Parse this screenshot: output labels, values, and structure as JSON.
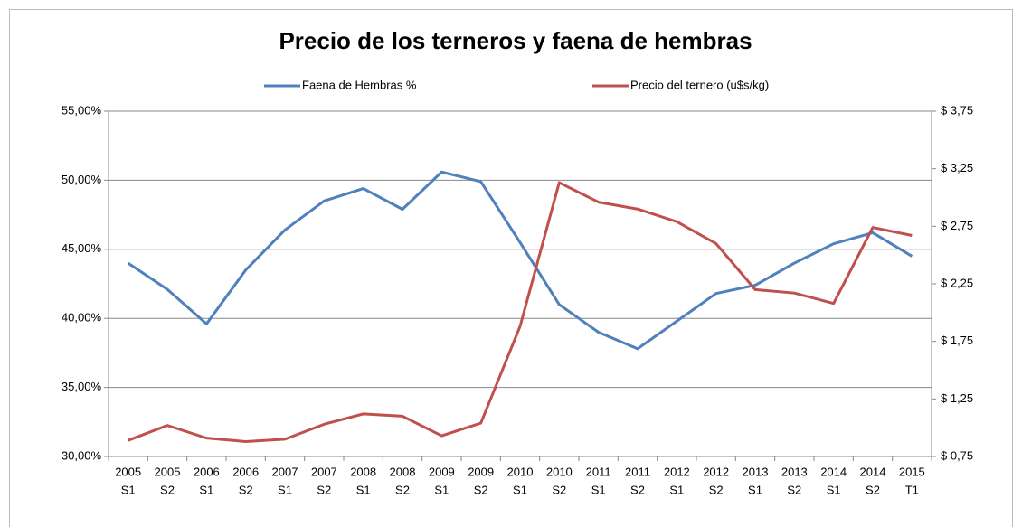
{
  "chart_data": {
    "type": "line",
    "title": "Precio de los terneros y faena de hembras",
    "categories": [
      [
        "2005",
        "S1"
      ],
      [
        "2005",
        "S2"
      ],
      [
        "2006",
        "S1"
      ],
      [
        "2006",
        "S2"
      ],
      [
        "2007",
        "S1"
      ],
      [
        "2007",
        "S2"
      ],
      [
        "2008",
        "S1"
      ],
      [
        "2008",
        "S2"
      ],
      [
        "2009",
        "S1"
      ],
      [
        "2009",
        "S2"
      ],
      [
        "2010",
        "S1"
      ],
      [
        "2010",
        "S2"
      ],
      [
        "2011",
        "S1"
      ],
      [
        "2011",
        "S2"
      ],
      [
        "2012",
        "S1"
      ],
      [
        "2012",
        "S2"
      ],
      [
        "2013",
        "S1"
      ],
      [
        "2013",
        "S2"
      ],
      [
        "2014",
        "S1"
      ],
      [
        "2014",
        "S2"
      ],
      [
        "2015",
        "T1"
      ]
    ],
    "series": [
      {
        "name": "Faena de Hembras %",
        "color": "#4f81bd",
        "axis": "y",
        "values": [
          44.0,
          42.1,
          39.6,
          43.5,
          46.4,
          48.5,
          49.4,
          47.9,
          50.6,
          49.9,
          45.5,
          41.0,
          39.0,
          37.8,
          39.8,
          41.8,
          42.4,
          44.0,
          45.4,
          46.2,
          44.5
        ]
      },
      {
        "name": "Precio del ternero (u$s/kg)",
        "color": "#c0504d",
        "axis": "y2",
        "values": [
          0.89,
          1.02,
          0.91,
          0.88,
          0.9,
          1.03,
          1.12,
          1.1,
          0.93,
          1.04,
          1.88,
          3.13,
          2.96,
          2.9,
          2.79,
          2.6,
          2.2,
          2.17,
          2.08,
          2.74,
          2.67
        ]
      }
    ],
    "ylim": [
      30,
      55
    ],
    "yticks": [
      {
        "value": 30,
        "label": "30,00%"
      },
      {
        "value": 35,
        "label": "35,00%"
      },
      {
        "value": 40,
        "label": "40,00%"
      },
      {
        "value": 45,
        "label": "45,00%"
      },
      {
        "value": 50,
        "label": "50,00%"
      },
      {
        "value": 55,
        "label": "55,00%"
      }
    ],
    "y2lim": [
      0.75,
      3.75
    ],
    "y2ticks": [
      {
        "value": 0.75,
        "label": "$ 0,75"
      },
      {
        "value": 1.25,
        "label": "$ 1,25"
      },
      {
        "value": 1.75,
        "label": "$ 1,75"
      },
      {
        "value": 2.25,
        "label": "$ 2,25"
      },
      {
        "value": 2.75,
        "label": "$ 2,75"
      },
      {
        "value": 3.25,
        "label": "$ 3,25"
      },
      {
        "value": 3.75,
        "label": "$ 3,75"
      }
    ],
    "grid": true,
    "legend": "top"
  }
}
